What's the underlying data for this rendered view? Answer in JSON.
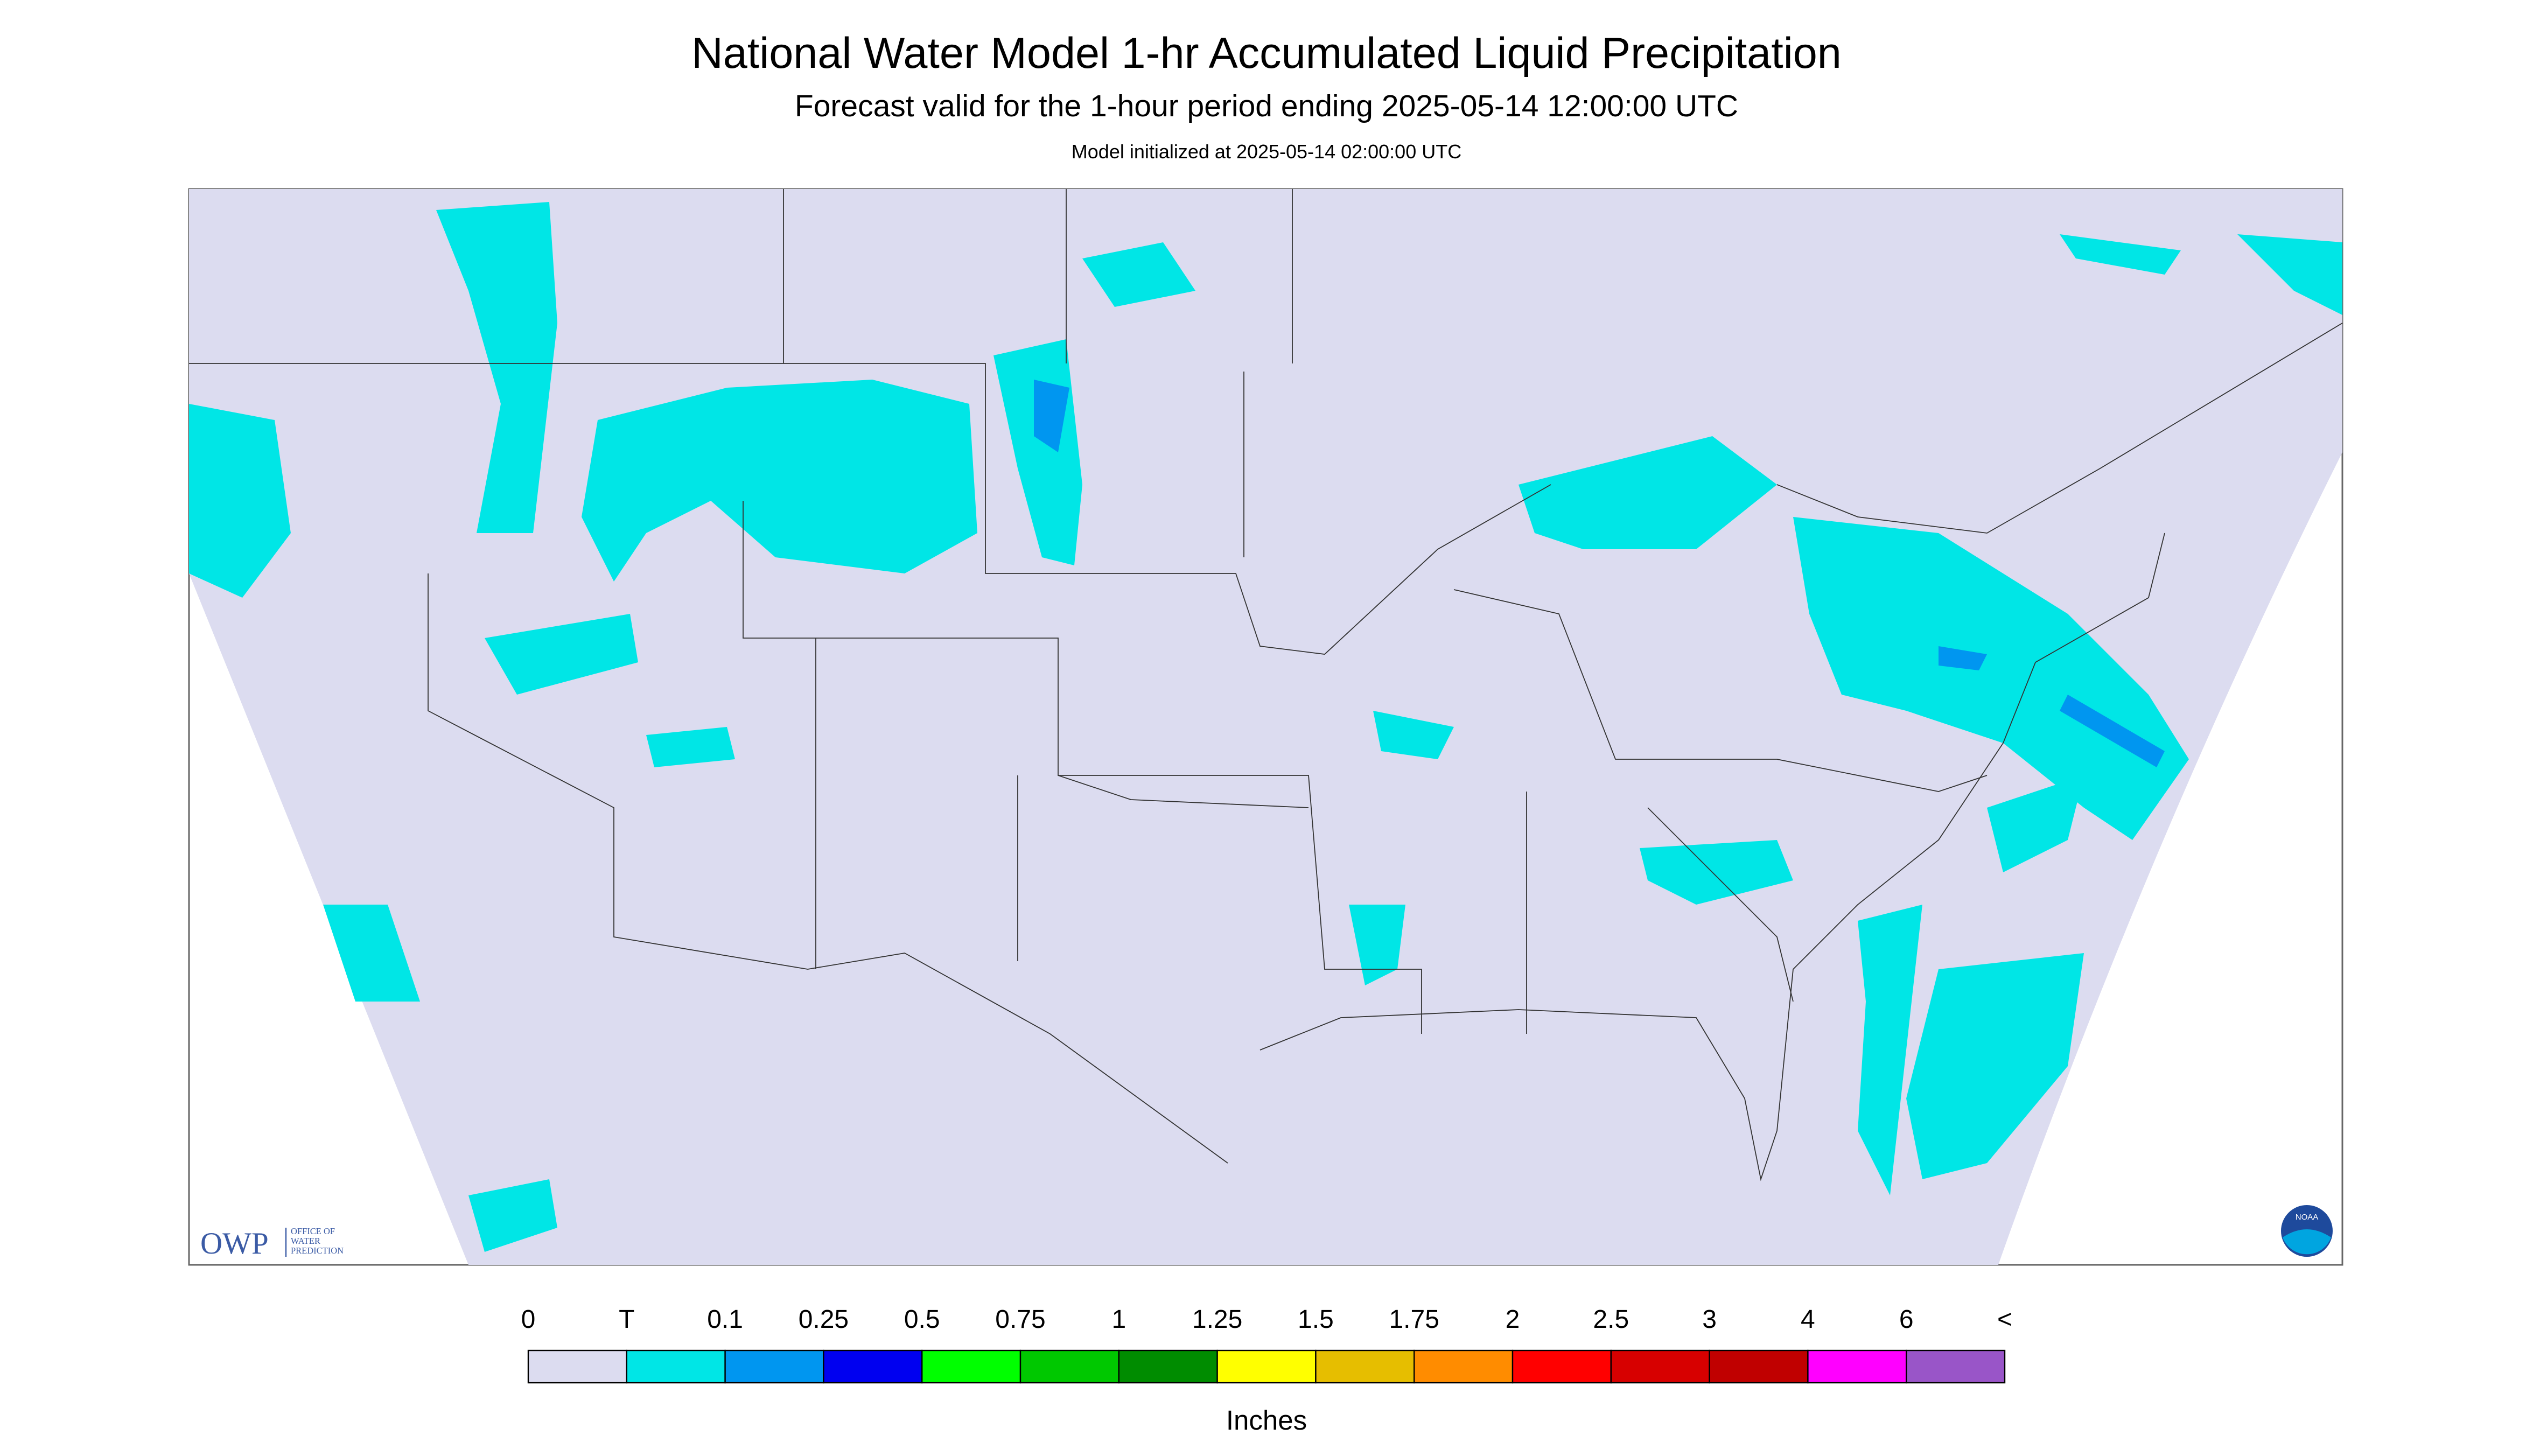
{
  "header": {
    "title": "National Water Model 1-hr Accumulated Liquid Precipitation",
    "subtitle": "Forecast valid for the 1-hour period ending 2025-05-14 12:00:00 UTC",
    "init": "Model initialized at 2025-05-14 02:00:00 UTC"
  },
  "logos": {
    "owp": "OWP",
    "owp_name": [
      "OFFICE OF",
      "WATER",
      "PREDICTION"
    ],
    "noaa": "NOAA"
  },
  "legend": {
    "labels": [
      "0",
      "T",
      "0.1",
      "0.25",
      "0.5",
      "0.75",
      "1",
      "1.25",
      "1.5",
      "1.75",
      "2",
      "2.5",
      "3",
      "4",
      "6",
      "<"
    ],
    "colors": [
      "#dcdcf0",
      "#00e6e6",
      "#0096f0",
      "#0000f0",
      "#00ff00",
      "#00c800",
      "#008c00",
      "#ffff00",
      "#e6be00",
      "#ff8c00",
      "#ff0000",
      "#d70000",
      "#c00000",
      "#ff00ff",
      "#9955c8"
    ],
    "unit": "Inches"
  }
}
